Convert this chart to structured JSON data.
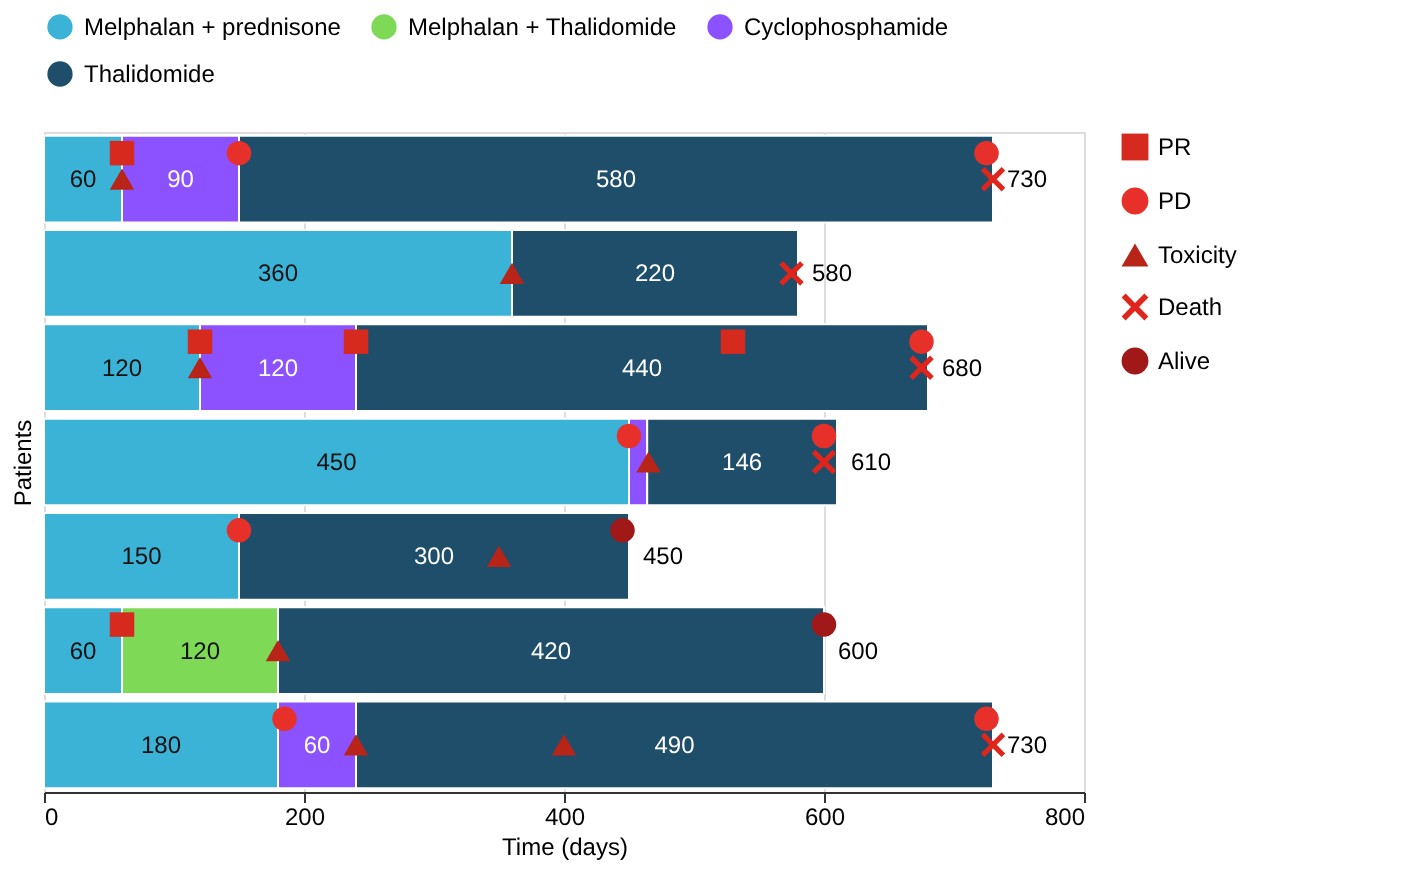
{
  "chart_data": {
    "type": "bar",
    "orientation": "horizontal",
    "stacked": true,
    "xlabel": "Time (days)",
    "ylabel": "Patients",
    "categories": [
      null,
      null,
      null,
      null,
      null,
      null,
      null
    ],
    "xlim": [
      0,
      800
    ],
    "xticks": [
      0,
      200,
      400,
      600,
      800
    ],
    "grid": "x",
    "legend": "top",
    "tick_labels": "x",
    "totals": [
      "730",
      "580",
      "680",
      "610",
      "450",
      "600",
      "730"
    ],
    "series": [
      {
        "name": "Melphalan + prednisone",
        "color": "#3bb3d6",
        "values": [
          60,
          360,
          120,
          450,
          150,
          60,
          180
        ],
        "value_labels": [
          "60",
          "360",
          "120",
          "450",
          "150",
          "60",
          "180"
        ]
      },
      {
        "name": "Melphalan + Thalidomide",
        "color": "#7ed957",
        "values": [
          null,
          null,
          null,
          null,
          null,
          120,
          null
        ],
        "value_labels": [
          null,
          null,
          null,
          null,
          null,
          "120",
          null
        ]
      },
      {
        "name": "Cyclophosphamide",
        "color": "#8c52ff",
        "values": [
          90,
          null,
          120,
          14,
          null,
          null,
          60
        ],
        "value_labels": [
          "90",
          null,
          "120",
          null,
          null,
          null,
          "60"
        ]
      },
      {
        "name": "Thalidomide",
        "color": "#1f4e6b",
        "values": [
          580,
          220,
          440,
          146,
          300,
          420,
          490
        ],
        "value_labels": [
          "580",
          "220",
          "440",
          "146",
          "300",
          "420",
          "490"
        ]
      },
      {
        "name": "PR",
        "type": "scatter",
        "marker": "square",
        "color": "#d62a1e",
        "values": [
          60,
          null,
          120,
          null,
          null,
          60,
          null
        ]
      },
      {
        "type": "scatter",
        "marker": "square",
        "color": "#d62a1e",
        "values": [
          null,
          null,
          240,
          null,
          null,
          null,
          null
        ]
      },
      {
        "type": "scatter",
        "marker": "square",
        "color": "#d62a1e",
        "values": [
          null,
          null,
          530,
          null,
          null,
          null,
          null
        ]
      },
      {
        "name": "PD",
        "type": "scatter",
        "marker": "circle",
        "color": "#e8302a",
        "values": [
          150,
          null,
          675,
          450,
          150,
          null,
          185
        ]
      },
      {
        "type": "scatter",
        "marker": "circle",
        "color": "#e8302a",
        "values": [
          725,
          null,
          null,
          600,
          null,
          null,
          725
        ]
      },
      {
        "name": "Toxicity",
        "type": "scatter",
        "marker": "triangle",
        "color": "#b82418",
        "values": [
          60,
          360,
          120,
          465,
          350,
          180,
          240
        ]
      },
      {
        "type": "scatter",
        "marker": "triangle",
        "color": "#b82418",
        "values": [
          null,
          null,
          null,
          null,
          null,
          null,
          400
        ]
      },
      {
        "name": "Death",
        "type": "scatter",
        "marker": "cross",
        "color": "#e0261c",
        "values": [
          730,
          575,
          675,
          600,
          null,
          null,
          730
        ]
      },
      {
        "name": "Alive",
        "type": "scatter",
        "marker": "circle",
        "color": "#a01818",
        "values": [
          null,
          null,
          null,
          null,
          445,
          600,
          null
        ]
      }
    ]
  }
}
